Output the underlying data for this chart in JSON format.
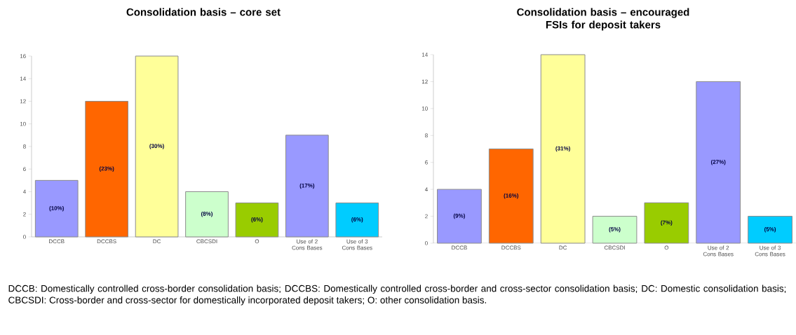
{
  "chart_data": [
    {
      "type": "bar",
      "title": "Consolidation basis – core set",
      "categories": [
        "DCCB",
        "DCCBS",
        "DC",
        "CBCSDI",
        "O",
        "Use of 2 Cons Bases",
        "Use of 3 Cons Bases"
      ],
      "values": [
        5,
        12,
        16,
        4,
        3,
        9,
        3
      ],
      "colors": [
        "#9999ff",
        "#ff6600",
        "#ffff99",
        "#ccffcc",
        "#99cc00",
        "#9999ff",
        "#00ccff"
      ],
      "ylim": [
        0,
        16
      ],
      "yticks": [
        0,
        2,
        4,
        6,
        8,
        10,
        12,
        14,
        16
      ],
      "annotations": [
        "(10%)",
        "(23%)",
        "(30%)",
        "(8%)",
        "(6%)",
        "(17%)",
        "(6%)",
        "DCCB: Domestically controlled cross-border consolidation basis; DCCBS: Domestically controlled cross-border and cross-sector consolidation basis; DC: Domestic consolidation basis; CBCSDI: Cross-border and cross-sector for domestically incorporated deposit takers; O: other consolidation basis."
      ]
    },
    {
      "type": "bar",
      "title": "Consolidation basis – encouraged FSIs for deposit takers",
      "categories": [
        "DCCB",
        "DCCBS",
        "DC",
        "CBCSDI",
        "O",
        "Use of 2 Cons Bases",
        "Use of 3 Cons Bases"
      ],
      "values": [
        4,
        7,
        14,
        2,
        3,
        12,
        2
      ],
      "colors": [
        "#9999ff",
        "#ff6600",
        "#ffff99",
        "#ccffcc",
        "#99cc00",
        "#9999ff",
        "#00ccff"
      ],
      "ylim": [
        0,
        14
      ],
      "yticks": [
        0,
        2,
        4,
        6,
        8,
        10,
        12,
        14
      ],
      "annotations": [
        "(9%)",
        "(16%)",
        "(31%)",
        "(5%)",
        "(7%)",
        "(27%)",
        "(5%)"
      ]
    }
  ]
}
